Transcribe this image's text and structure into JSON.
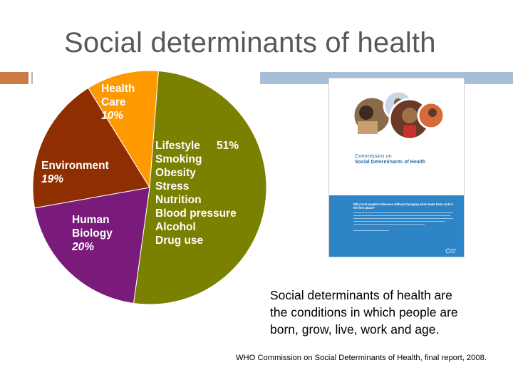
{
  "slide": {
    "title": "Social determinants of health",
    "quote": "Social determinants of health are the conditions in which people are born, grow, live, work and age.",
    "source": "WHO Commission on Social Determinants of Health, final report, 2008."
  },
  "report_cover": {
    "title_line1": "Commission on",
    "title_line2": "Social Determinants of Health",
    "tagline": "Why treat people’s illnesses without changing what made them sick in the first place?"
  },
  "chart_data": {
    "type": "pie",
    "title": "",
    "slices": [
      {
        "name": "Lifestyle",
        "value": 51,
        "value_label": "51%",
        "color": "#7a8000",
        "items": [
          "Smoking",
          "Obesity",
          "Stress",
          "Nutrition",
          "Blood pressure",
          "Alcohol",
          "Drug use"
        ]
      },
      {
        "name": "Human Biology",
        "value": 20,
        "value_label": "20%",
        "color": "#7a1a7a",
        "items": []
      },
      {
        "name": "Environment",
        "value": 19,
        "value_label": "19%",
        "color": "#8f2e00",
        "items": []
      },
      {
        "name": "Health Care",
        "value": 10,
        "value_label": "10%",
        "color": "#ff9900",
        "items": []
      }
    ],
    "legend": "none",
    "data_labels": "inside"
  }
}
